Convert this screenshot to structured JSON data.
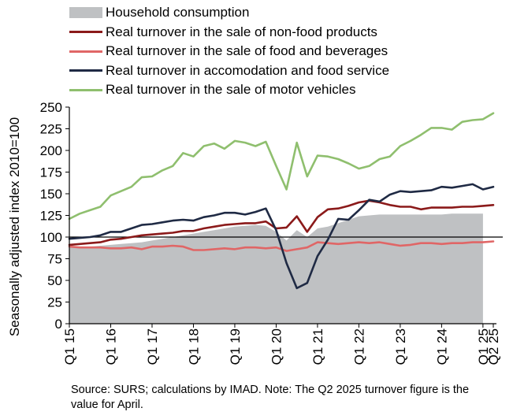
{
  "chart_data": {
    "type": "line",
    "ylabel": "Seasonally adjusted index 2010=100",
    "ylim": [
      0,
      250
    ],
    "yticks": [
      0,
      25,
      50,
      75,
      100,
      125,
      150,
      175,
      200,
      225,
      250
    ],
    "reference_line": 100,
    "x_categories": [
      "Q1 15",
      "Q2 15",
      "Q3 15",
      "Q4 15",
      "Q1 16",
      "Q2 16",
      "Q3 16",
      "Q4 16",
      "Q1 17",
      "Q2 17",
      "Q3 17",
      "Q4 17",
      "Q1 18",
      "Q2 18",
      "Q3 18",
      "Q4 18",
      "Q1 19",
      "Q2 19",
      "Q3 19",
      "Q4 19",
      "Q1 20",
      "Q2 20",
      "Q3 20",
      "Q4 20",
      "Q1 21",
      "Q2 21",
      "Q3 21",
      "Q4 21",
      "Q1 22",
      "Q2 22",
      "Q3 22",
      "Q4 22",
      "Q1 23",
      "Q2 23",
      "Q3 23",
      "Q4 23",
      "Q1 24",
      "Q2 24",
      "Q3 24",
      "Q4 24",
      "Q1 25",
      "Q2 25"
    ],
    "x_tick_labels": [
      {
        "label": "Q1 15",
        "index": 0
      },
      {
        "label": "Q1 16",
        "index": 4
      },
      {
        "label": "Q1 17",
        "index": 8
      },
      {
        "label": "Q1 18",
        "index": 12
      },
      {
        "label": "Q1 19",
        "index": 16
      },
      {
        "label": "Q1 20",
        "index": 20
      },
      {
        "label": "Q1 21",
        "index": 24
      },
      {
        "label": "Q1 22",
        "index": 28
      },
      {
        "label": "Q1 23",
        "index": 32
      },
      {
        "label": "Q1 24",
        "index": 36
      },
      {
        "label": "Q1 25",
        "index": 40
      },
      {
        "label": "Q2 25",
        "index": 41
      }
    ],
    "series": [
      {
        "name": "Household consumption",
        "kind": "area",
        "color": "#bfc1c3",
        "x_start": 0,
        "values": [
          88,
          88,
          89,
          90,
          91,
          92,
          93,
          94,
          96,
          98,
          100,
          102,
          104,
          106,
          108,
          110,
          112,
          113,
          114,
          113,
          106,
          96,
          108,
          100,
          110,
          112,
          116,
          120,
          124,
          125,
          126,
          126,
          126,
          126,
          126,
          126,
          126,
          127,
          127,
          127,
          127
        ]
      },
      {
        "name": "Real turnover in the sale of non-food products",
        "kind": "line",
        "color": "#8b1a1a",
        "x_start": 0,
        "values": [
          91,
          92,
          93,
          94,
          97,
          98,
          100,
          102,
          103,
          104,
          105,
          107,
          107,
          110,
          112,
          114,
          115,
          116,
          116,
          118,
          110,
          111,
          124,
          106,
          123,
          132,
          133,
          136,
          140,
          142,
          140,
          137,
          135,
          135,
          132,
          134,
          134,
          134,
          135,
          135,
          136,
          137
        ]
      },
      {
        "name": "Real turnover in the sale of food and beverages",
        "kind": "line",
        "color": "#e06666",
        "x_start": 0,
        "values": [
          89,
          88,
          88,
          88,
          87,
          87,
          88,
          86,
          89,
          89,
          90,
          89,
          85,
          85,
          86,
          87,
          86,
          88,
          88,
          87,
          88,
          84,
          86,
          88,
          94,
          93,
          92,
          93,
          94,
          93,
          94,
          92,
          90,
          91,
          93,
          93,
          92,
          93,
          93,
          94,
          94,
          95
        ]
      },
      {
        "name": "Real turnover in accomodation and food service",
        "kind": "line",
        "color": "#1f2a44",
        "x_start": 0,
        "values": [
          98,
          99,
          100,
          102,
          106,
          106,
          110,
          114,
          115,
          117,
          119,
          120,
          119,
          123,
          125,
          128,
          128,
          126,
          129,
          133,
          108,
          70,
          41,
          47,
          78,
          97,
          121,
          120,
          131,
          143,
          141,
          149,
          153,
          152,
          153,
          154,
          158,
          157,
          159,
          161,
          155,
          158
        ]
      },
      {
        "name": "Real turnover in the sale of motor vehicles",
        "kind": "line",
        "color": "#8fbf6e",
        "x_start": 0,
        "values": [
          121,
          127,
          131,
          135,
          148,
          153,
          158,
          169,
          170,
          177,
          182,
          197,
          193,
          205,
          208,
          202,
          211,
          209,
          205,
          210,
          182,
          155,
          209,
          170,
          194,
          193,
          190,
          185,
          179,
          182,
          190,
          193,
          205,
          211,
          218,
          226,
          226,
          224,
          233,
          235,
          236,
          243
        ]
      }
    ]
  },
  "source_text": "Source: SURS; calculations by IMAD. Note: The Q2 2025 turnover figure is the value for April."
}
